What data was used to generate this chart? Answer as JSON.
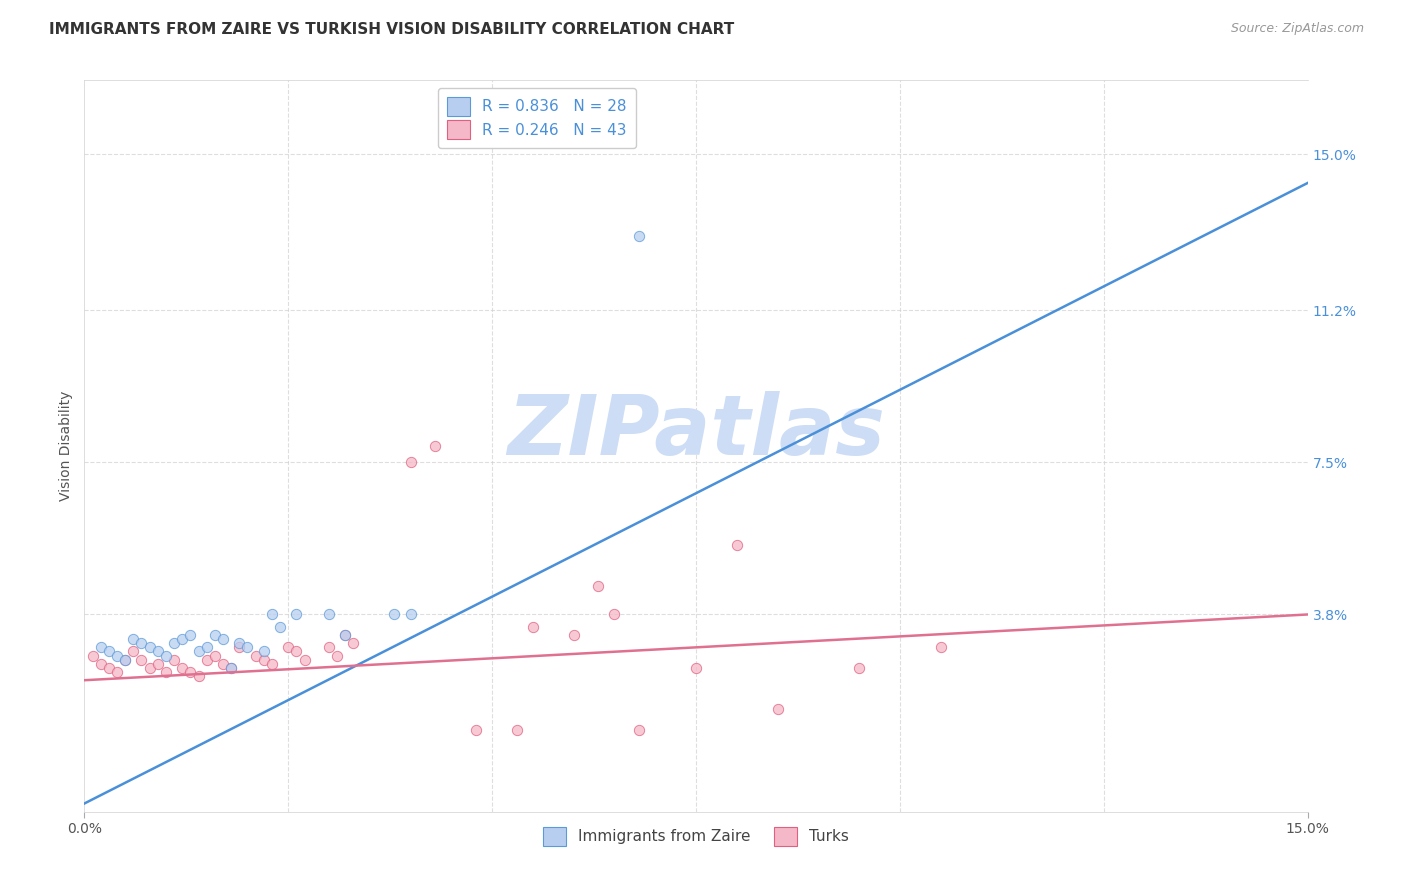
{
  "title": "IMMIGRANTS FROM ZAIRE VS TURKISH VISION DISABILITY CORRELATION CHART",
  "source": "Source: ZipAtlas.com",
  "ylabel": "Vision Disability",
  "xlim": [
    0.0,
    0.15
  ],
  "ylim": [
    -0.01,
    0.168
  ],
  "yticks": [
    0.038,
    0.075,
    0.112,
    0.15
  ],
  "ytick_labels": [
    "3.8%",
    "7.5%",
    "11.2%",
    "15.0%"
  ],
  "xtick_positions": [
    0.0,
    0.025,
    0.05,
    0.075,
    0.1,
    0.125,
    0.15
  ],
  "watermark": "ZIPatlas",
  "legend_entries": [
    {
      "label": "Immigrants from Zaire",
      "R": "0.836",
      "N": "28",
      "color": "#aec6f0"
    },
    {
      "label": "Turks",
      "R": "0.246",
      "N": "43",
      "color": "#f4a8b8"
    }
  ],
  "blue_scatter": [
    [
      0.002,
      0.03
    ],
    [
      0.003,
      0.029
    ],
    [
      0.004,
      0.028
    ],
    [
      0.005,
      0.027
    ],
    [
      0.006,
      0.032
    ],
    [
      0.007,
      0.031
    ],
    [
      0.008,
      0.03
    ],
    [
      0.009,
      0.029
    ],
    [
      0.01,
      0.028
    ],
    [
      0.011,
      0.031
    ],
    [
      0.012,
      0.032
    ],
    [
      0.013,
      0.033
    ],
    [
      0.014,
      0.029
    ],
    [
      0.015,
      0.03
    ],
    [
      0.016,
      0.033
    ],
    [
      0.017,
      0.032
    ],
    [
      0.018,
      0.025
    ],
    [
      0.019,
      0.031
    ],
    [
      0.02,
      0.03
    ],
    [
      0.022,
      0.029
    ],
    [
      0.023,
      0.038
    ],
    [
      0.024,
      0.035
    ],
    [
      0.026,
      0.038
    ],
    [
      0.03,
      0.038
    ],
    [
      0.032,
      0.033
    ],
    [
      0.038,
      0.038
    ],
    [
      0.04,
      0.038
    ],
    [
      0.068,
      0.13
    ]
  ],
  "pink_scatter": [
    [
      0.001,
      0.028
    ],
    [
      0.002,
      0.026
    ],
    [
      0.003,
      0.025
    ],
    [
      0.004,
      0.024
    ],
    [
      0.005,
      0.027
    ],
    [
      0.006,
      0.029
    ],
    [
      0.007,
      0.027
    ],
    [
      0.008,
      0.025
    ],
    [
      0.009,
      0.026
    ],
    [
      0.01,
      0.024
    ],
    [
      0.011,
      0.027
    ],
    [
      0.012,
      0.025
    ],
    [
      0.013,
      0.024
    ],
    [
      0.014,
      0.023
    ],
    [
      0.015,
      0.027
    ],
    [
      0.016,
      0.028
    ],
    [
      0.017,
      0.026
    ],
    [
      0.018,
      0.025
    ],
    [
      0.019,
      0.03
    ],
    [
      0.021,
      0.028
    ],
    [
      0.022,
      0.027
    ],
    [
      0.023,
      0.026
    ],
    [
      0.025,
      0.03
    ],
    [
      0.026,
      0.029
    ],
    [
      0.027,
      0.027
    ],
    [
      0.03,
      0.03
    ],
    [
      0.031,
      0.028
    ],
    [
      0.032,
      0.033
    ],
    [
      0.033,
      0.031
    ],
    [
      0.04,
      0.075
    ],
    [
      0.043,
      0.079
    ],
    [
      0.048,
      0.01
    ],
    [
      0.053,
      0.01
    ],
    [
      0.055,
      0.035
    ],
    [
      0.06,
      0.033
    ],
    [
      0.063,
      0.045
    ],
    [
      0.065,
      0.038
    ],
    [
      0.068,
      0.01
    ],
    [
      0.075,
      0.025
    ],
    [
      0.08,
      0.055
    ],
    [
      0.085,
      0.015
    ],
    [
      0.095,
      0.025
    ],
    [
      0.105,
      0.03
    ]
  ],
  "blue_line_x": [
    0.0,
    0.15
  ],
  "blue_line_y": [
    -0.008,
    0.143
  ],
  "pink_line_x": [
    0.0,
    0.15
  ],
  "pink_line_y": [
    0.022,
    0.038
  ],
  "scatter_size": 55,
  "scatter_alpha": 0.75,
  "line_width": 1.8,
  "blue_fill": "#b8cef0",
  "pink_fill": "#f5b8c8",
  "blue_edge_color": "#5a9ad8",
  "pink_edge_color": "#e06080",
  "blue_line_color": "#4a90d9",
  "pink_line_color": "#e07090",
  "grid_color": "#d0d0d0",
  "grid_alpha": 0.7,
  "watermark_color": "#ccddf5",
  "watermark_fontsize": 60,
  "title_fontsize": 11,
  "legend_fontsize": 11,
  "axis_label_fontsize": 10,
  "tick_label_color_right": "#4a90d9",
  "background_color": "#ffffff"
}
